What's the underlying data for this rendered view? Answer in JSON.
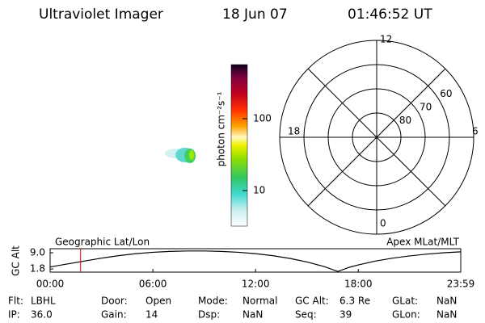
{
  "header": {
    "title": "Ultraviolet Imager",
    "date": "18 Jun 07",
    "time": "01:46:52 UT"
  },
  "colorbar": {
    "label": "photon cm⁻²s⁻¹",
    "log_scale": true,
    "ylim": [
      3.2,
      565
    ],
    "yticks": [
      10,
      100
    ]
  },
  "polar": {
    "rlim": [
      90,
      50
    ],
    "rticks": [
      80,
      70,
      60
    ],
    "mlt_ticks": [
      12,
      6,
      0,
      18
    ]
  },
  "alt_plot": {
    "ylabel": "GC Alt",
    "left_label": "Geographic Lat/Lon",
    "right_label": "Apex MLat/MLT",
    "x": [
      0,
      1,
      2,
      3,
      4,
      5,
      6,
      7,
      8,
      9,
      10,
      11,
      12,
      13,
      14,
      15,
      16,
      16.8,
      17.5,
      18,
      19,
      20,
      21,
      22,
      23,
      23.98
    ],
    "values": [
      2.7,
      4.0,
      5.3,
      6.6,
      7.7,
      8.6,
      9.2,
      9.6,
      9.8,
      9.8,
      9.6,
      9.2,
      8.6,
      7.7,
      6.5,
      4.9,
      2.9,
      0.7,
      2.6,
      3.6,
      5.3,
      6.6,
      7.6,
      8.4,
      9.0,
      9.4
    ],
    "color": "#000000",
    "marker": 1.78,
    "marker_color": "#e00000",
    "xlim": [
      0,
      23.983
    ],
    "xticks": [
      {
        "value": 0,
        "label": "00:00"
      },
      {
        "value": 6,
        "label": "06:00"
      },
      {
        "value": 12,
        "label": "12:00"
      },
      {
        "value": 18,
        "label": "18:00"
      },
      {
        "value": 23.983,
        "label": "23:59"
      }
    ],
    "ylim": [
      0.4,
      10.8
    ],
    "yticks": [
      {
        "value": 1.8,
        "label": "1.8"
      },
      {
        "value": 9,
        "label": "9.0"
      }
    ]
  },
  "footer": {
    "rows": [
      [
        {
          "label": "Flt:",
          "value": "LBHL"
        },
        {
          "label": "Door:",
          "value": "Open"
        },
        {
          "label": "Mode:",
          "value": "Normal"
        },
        {
          "label": "GC Alt:",
          "value": "6.3 Re"
        },
        {
          "label": "GLat:",
          "value": "NaN"
        }
      ],
      [
        {
          "label": "IP:",
          "value": "36.0"
        },
        {
          "label": "Gain:",
          "value": "14"
        },
        {
          "label": "Dsp:",
          "value": "NaN"
        },
        {
          "label": "Seq:",
          "value": "39"
        },
        {
          "label": "GLon:",
          "value": "NaN"
        }
      ]
    ]
  }
}
